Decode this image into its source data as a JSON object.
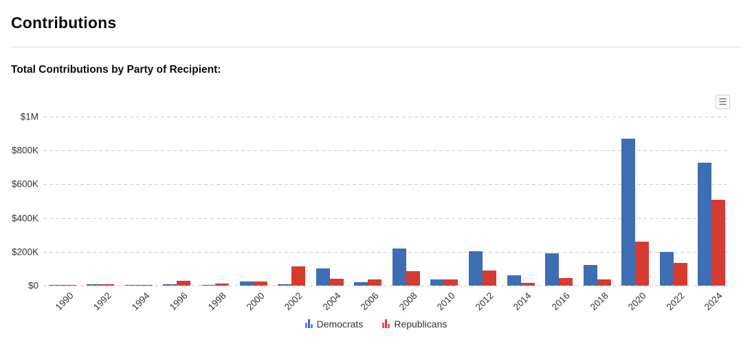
{
  "page": {
    "title": "Contributions",
    "subtitle": "Total Contributions by Party of Recipient:"
  },
  "chart": {
    "context_menu_icon": "hamburger-menu-icon"
  },
  "chart_data": {
    "type": "bar",
    "title": "Total Contributions by Party of Recipient:",
    "categories": [
      "1990",
      "1992",
      "1994",
      "1996",
      "1998",
      "2000",
      "2002",
      "2004",
      "2006",
      "2008",
      "2010",
      "2012",
      "2014",
      "2016",
      "2018",
      "2020",
      "2022",
      "2024"
    ],
    "series": [
      {
        "name": "Democrats",
        "color": "#3d6eb4",
        "values": [
          3000,
          10000,
          5000,
          9000,
          5000,
          25000,
          10000,
          100000,
          22000,
          218000,
          36000,
          204000,
          60000,
          190000,
          123000,
          870000,
          198000,
          727000
        ]
      },
      {
        "name": "Republicans",
        "color": "#d63b32",
        "values": [
          3000,
          10000,
          5000,
          30000,
          12000,
          25000,
          115000,
          42000,
          37000,
          85000,
          36000,
          88000,
          17000,
          44000,
          36000,
          260000,
          134000,
          510000
        ]
      }
    ],
    "xlabel": "",
    "ylabel": "",
    "ylim": [
      0,
      1000000
    ],
    "yticks": [
      {
        "value": 0,
        "label": "$0"
      },
      {
        "value": 200000,
        "label": "$200K"
      },
      {
        "value": 400000,
        "label": "$400K"
      },
      {
        "value": 600000,
        "label": "$600K"
      },
      {
        "value": 800000,
        "label": "$800K"
      },
      {
        "value": 1000000,
        "label": "$1M"
      }
    ],
    "grid": "horizontal-dashed",
    "legend_position": "bottom-center",
    "x_label_rotation": -45
  }
}
